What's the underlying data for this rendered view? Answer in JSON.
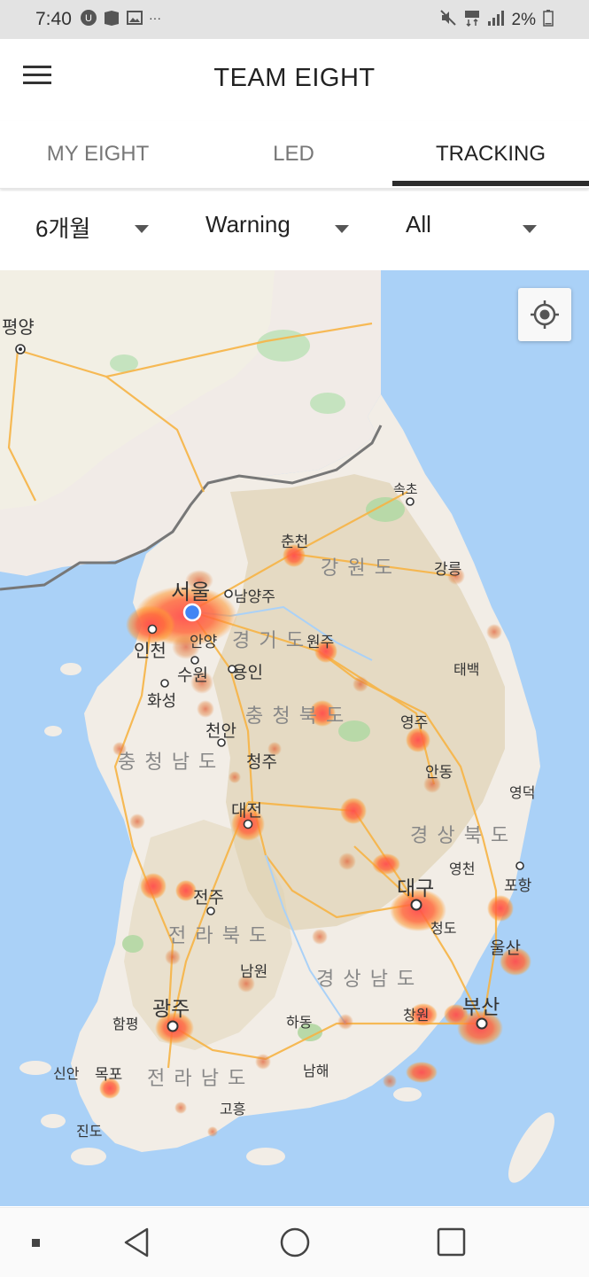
{
  "status_bar": {
    "time": "7:40",
    "more": "···",
    "battery": "2%"
  },
  "header": {
    "title": "TEAM EIGHT"
  },
  "tabs": [
    {
      "label": "MY EIGHT"
    },
    {
      "label": "LED"
    },
    {
      "label": "TRACKING"
    }
  ],
  "filters": {
    "period": "6개월",
    "level": "Warning",
    "scope": "All"
  },
  "map": {
    "labels": {
      "pyongyang": "평양",
      "sokcho": "속초",
      "chuncheon": "춘천",
      "gangwon": "강 원 도",
      "gangneung": "강릉",
      "seoul": "서울",
      "namyangju": "남양주",
      "incheon": "인천",
      "anyang": "안양",
      "gyeonggi": "경 기 도",
      "wonju": "원주",
      "taebaek": "태백",
      "suwon": "수원",
      "yongin": "용인",
      "hwaseong": "화성",
      "chungbuk": "충 청 북 도",
      "yeongju": "영주",
      "cheonan": "천안",
      "chungnam": "충 청 남 도",
      "cheongju": "청주",
      "andong": "안동",
      "yeongdeok": "영덕",
      "daejeon": "대전",
      "gyeongbuk": "경 상 북 도",
      "yeongcheon": "영천",
      "pohang": "포항",
      "jeonju": "전주",
      "daegu": "대구",
      "cheongdo": "청도",
      "jeonbuk": "전 라 북 도",
      "ulsan": "울산",
      "namwon": "남원",
      "gyeongnam": "경 상 남 도",
      "gwangju": "광주",
      "hampyeong": "함평",
      "hadong": "하동",
      "changwon": "창원",
      "busan": "부산",
      "sinan": "신안",
      "mokpo": "목포",
      "jeonnam": "전 라 남 도",
      "namhae": "남해",
      "goheung": "고흥",
      "jindo": "진도"
    },
    "colors": {
      "sea": "#aad1f7",
      "land": "#f2ede6",
      "terrain": "#ddd0b0",
      "heat_core": "#ff4d4d",
      "heat_edge": "#ff9933",
      "road": "#f7b445",
      "my_location": "#4285f4"
    }
  }
}
